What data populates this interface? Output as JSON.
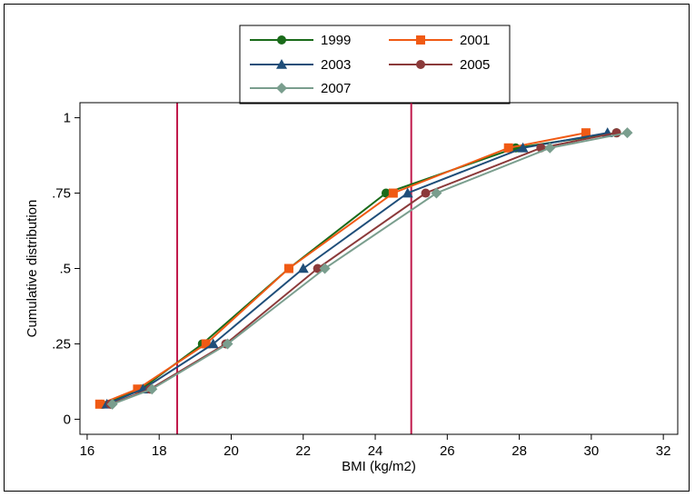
{
  "chart_data": {
    "type": "line",
    "xlabel": "BMI (kg/m2)",
    "ylabel": "Cumulative distribution",
    "xlim": [
      15.8,
      32.4
    ],
    "ylim": [
      -0.05,
      1.05
    ],
    "x_ticks": [
      16,
      18,
      20,
      22,
      24,
      26,
      28,
      30,
      32
    ],
    "x_tick_labels": [
      "16",
      "18",
      "20",
      "22",
      "24",
      "26",
      "28",
      "30",
      "32"
    ],
    "y_ticks": [
      0,
      0.25,
      0.5,
      0.75,
      1
    ],
    "y_tick_labels": [
      "0",
      ".25",
      ".5",
      ".75",
      "1"
    ],
    "reference_lines_x": [
      18.5,
      25
    ],
    "reference_line_color": "#C0184A",
    "legend_position": "top-center",
    "series": [
      {
        "name": "1999",
        "color": "#1A6B1A",
        "marker": "circle",
        "points": [
          [
            16.4,
            0.05
          ],
          [
            17.5,
            0.1
          ],
          [
            19.2,
            0.25
          ],
          [
            21.6,
            0.5
          ],
          [
            24.3,
            0.75
          ],
          [
            27.9,
            0.9
          ],
          [
            30.7,
            0.95
          ]
        ]
      },
      {
        "name": "2001",
        "color": "#F05A14",
        "marker": "square",
        "points": [
          [
            16.35,
            0.05
          ],
          [
            17.4,
            0.1
          ],
          [
            19.3,
            0.25
          ],
          [
            21.6,
            0.5
          ],
          [
            24.5,
            0.75
          ],
          [
            27.7,
            0.9
          ],
          [
            29.85,
            0.95
          ]
        ]
      },
      {
        "name": "2003",
        "color": "#1F4E79",
        "marker": "triangle",
        "points": [
          [
            16.55,
            0.05
          ],
          [
            17.55,
            0.1
          ],
          [
            19.5,
            0.25
          ],
          [
            22.0,
            0.5
          ],
          [
            24.9,
            0.75
          ],
          [
            28.1,
            0.9
          ],
          [
            30.45,
            0.95
          ]
        ]
      },
      {
        "name": "2005",
        "color": "#8B3A3A",
        "marker": "circle",
        "points": [
          [
            16.65,
            0.05
          ],
          [
            17.75,
            0.1
          ],
          [
            19.85,
            0.25
          ],
          [
            22.4,
            0.5
          ],
          [
            25.4,
            0.75
          ],
          [
            28.6,
            0.9
          ],
          [
            30.7,
            0.95
          ]
        ]
      },
      {
        "name": "2007",
        "color": "#7A9E8E",
        "marker": "diamond",
        "points": [
          [
            16.7,
            0.05
          ],
          [
            17.8,
            0.1
          ],
          [
            19.9,
            0.25
          ],
          [
            22.6,
            0.5
          ],
          [
            25.7,
            0.75
          ],
          [
            28.85,
            0.9
          ],
          [
            31.0,
            0.95
          ]
        ]
      }
    ]
  }
}
